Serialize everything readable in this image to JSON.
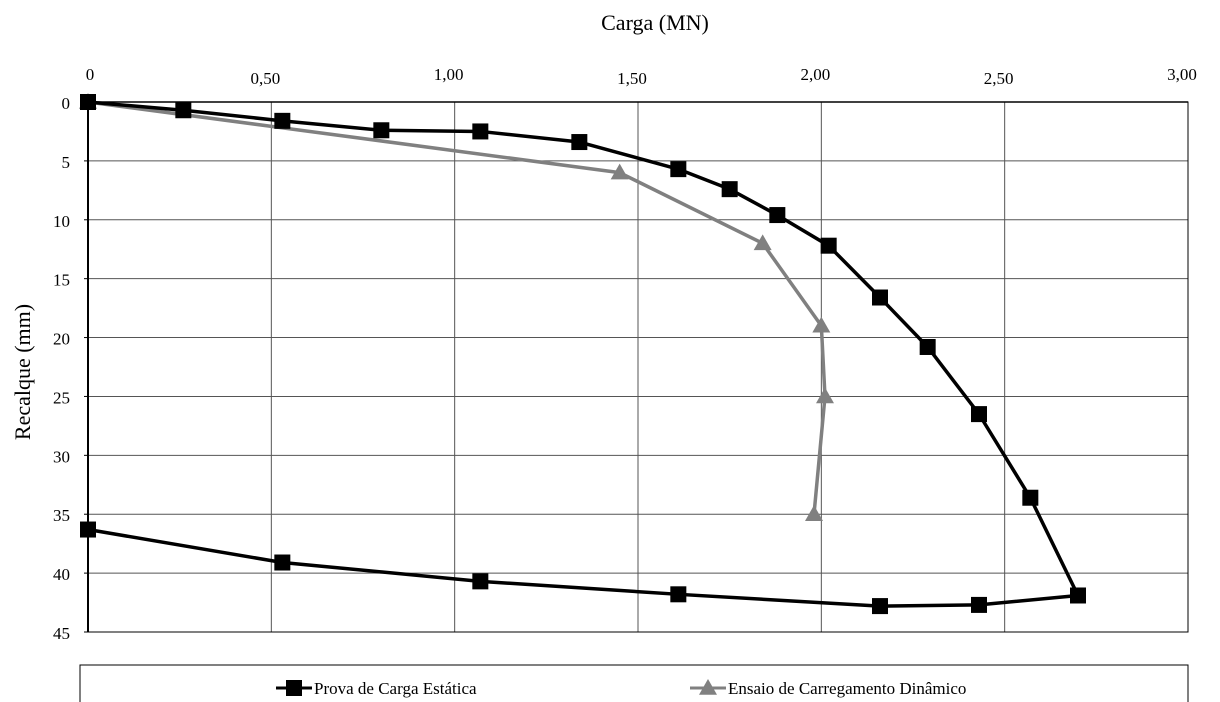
{
  "chart_data": {
    "type": "line",
    "title": "",
    "xlabel": "Carga (MN)",
    "ylabel": "Recalque (mm)",
    "xlim": [
      0,
      3.0
    ],
    "ylim": [
      0,
      45
    ],
    "y_inverted": true,
    "x_axis_position": "top",
    "x_ticks": [
      0,
      0.5,
      1.0,
      1.5,
      2.0,
      2.5,
      3.0
    ],
    "x_tick_labels": [
      "0",
      "0,50",
      "1,00",
      "1,50",
      "2,00",
      "2,50",
      "3,00"
    ],
    "y_ticks": [
      0,
      5,
      10,
      15,
      20,
      25,
      30,
      35,
      40,
      45
    ],
    "y_tick_labels": [
      "0",
      "5",
      "10",
      "15",
      "20",
      "25",
      "30",
      "35",
      "40",
      "45"
    ],
    "grid": true,
    "legend_position": "bottom",
    "series": [
      {
        "name": "Prova de Carga Estática",
        "color": "#000000",
        "marker": "square",
        "points": [
          [
            0.0,
            0.0
          ],
          [
            0.26,
            0.7
          ],
          [
            0.53,
            1.6
          ],
          [
            0.8,
            2.4
          ],
          [
            1.07,
            2.5
          ],
          [
            1.34,
            3.4
          ],
          [
            1.61,
            5.7
          ],
          [
            1.75,
            7.4
          ],
          [
            1.88,
            9.6
          ],
          [
            2.02,
            12.2
          ],
          [
            2.16,
            16.6
          ],
          [
            2.29,
            20.8
          ],
          [
            2.43,
            26.5
          ],
          [
            2.57,
            33.6
          ],
          [
            2.7,
            41.9
          ],
          [
            2.43,
            42.7
          ],
          [
            2.16,
            42.8
          ],
          [
            1.61,
            41.8
          ],
          [
            1.07,
            40.7
          ],
          [
            0.53,
            39.1
          ],
          [
            0.0,
            36.3
          ]
        ]
      },
      {
        "name": "Ensaio de Carregamento Dinâmico",
        "color": "#808080",
        "marker": "triangle",
        "points": [
          [
            0.0,
            0.0
          ],
          [
            1.45,
            6.0
          ],
          [
            1.84,
            12.0
          ],
          [
            2.0,
            19.0
          ],
          [
            2.01,
            25.0
          ],
          [
            1.98,
            35.0
          ]
        ]
      }
    ]
  }
}
